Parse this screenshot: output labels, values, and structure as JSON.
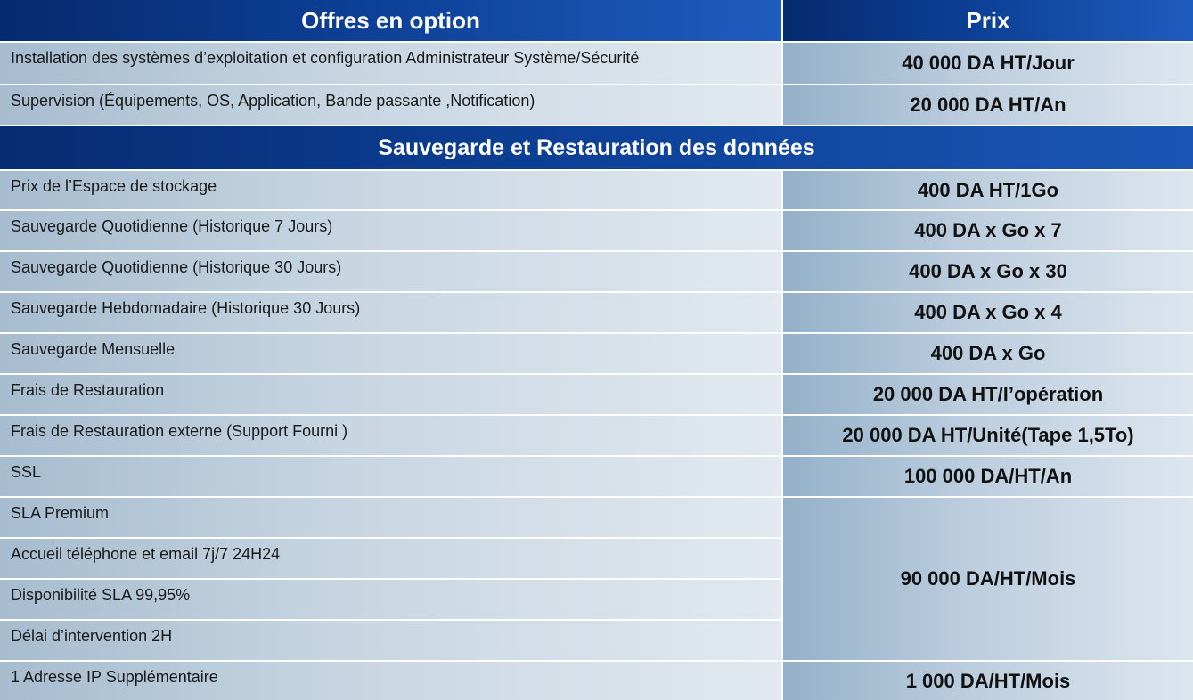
{
  "header": {
    "col1": "Offres en option",
    "col2": "Prix"
  },
  "options": [
    {
      "label": "Installation des systèmes d’exploitation et configuration Administrateur Système/Sécurité",
      "price": "40 000 DA HT/Jour"
    },
    {
      "label": "Supervision (Équipements, OS, Application, Bande passante ,Notification)",
      "price": "20 000 DA HT/An"
    }
  ],
  "section_title": "Sauvegarde et Restauration des données",
  "backup": [
    {
      "label": "Prix de l’Espace de stockage",
      "price": "400 DA HT/1Go"
    },
    {
      "label": "Sauvegarde Quotidienne (Historique 7 Jours)",
      "price": "400 DA x Go x 7"
    },
    {
      "label": "Sauvegarde Quotidienne (Historique 30 Jours)",
      "price": "400 DA x Go x 30"
    },
    {
      "label": "Sauvegarde Hebdomadaire (Historique 30 Jours)",
      "price": "400 DA x Go x 4"
    },
    {
      "label": "Sauvegarde Mensuelle",
      "price": "400 DA x Go"
    },
    {
      "label": "Frais de Restauration",
      "price": "20 000 DA HT/l’opération"
    },
    {
      "label": "Frais de Restauration externe (Support Fourni )",
      "price": "20 000 DA HT/Unité(Tape 1,5To)"
    },
    {
      "label": "SSL",
      "price": "100 000 DA/HT/An"
    }
  ],
  "sla": {
    "items": [
      "SLA Premium",
      "Accueil téléphone et email 7j/7 24H24",
      "Disponibilité SLA 99,95%",
      "Délai d’intervention 2H"
    ],
    "price": "90 000 DA/HT/Mois"
  },
  "ip": {
    "label": "1 Adresse IP Supplémentaire",
    "price": "1 000 DA/HT/Mois"
  }
}
